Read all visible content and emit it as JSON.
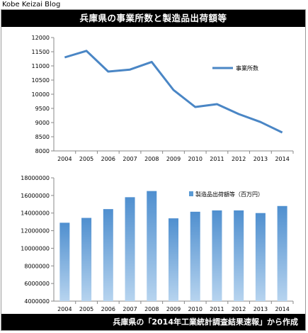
{
  "blog_label": "Kobe Keizai Blog",
  "title": "兵庫県の事業所数と製造品出荷額等",
  "source": "兵庫県の「2014年工業統計調査結果速報」から作成",
  "chart_data": [
    {
      "type": "line",
      "categories": [
        "2004",
        "2005",
        "2006",
        "2007",
        "2008",
        "2009",
        "2010",
        "2011",
        "2012",
        "2013",
        "2014"
      ],
      "series": [
        {
          "name": "事業所数",
          "values": [
            11300,
            11530,
            10800,
            10870,
            11140,
            10150,
            9550,
            9650,
            9300,
            9020,
            8650
          ],
          "color": "#4a86c5"
        }
      ],
      "ylim": [
        8000,
        12000
      ],
      "yticks": [
        8000,
        8500,
        9000,
        9500,
        10000,
        10500,
        11000,
        11500,
        12000
      ],
      "ytick_labels": [
        "8000",
        "8500",
        "9000",
        "9500",
        "10000",
        "10500",
        "11000",
        "11500",
        "12000"
      ],
      "legend": "top-right",
      "grid": false
    },
    {
      "type": "bar",
      "categories": [
        "2004",
        "2005",
        "2006",
        "2007",
        "2008",
        "2009",
        "2010",
        "2011",
        "2012",
        "2013",
        "2014"
      ],
      "series": [
        {
          "name": "製造品出荷額等（百万円）",
          "values": [
            12900000,
            13450000,
            14450000,
            15800000,
            16500000,
            13400000,
            14150000,
            14300000,
            14300000,
            14000000,
            14800000
          ],
          "color": "#5b9bd5"
        }
      ],
      "ylim": [
        4000000,
        18000000
      ],
      "yticks": [
        4000000,
        6000000,
        8000000,
        10000000,
        12000000,
        14000000,
        16000000,
        18000000
      ],
      "ytick_labels": [
        "4000000",
        "6000000",
        "8000000",
        "10000000",
        "12000000",
        "14000000",
        "16000000",
        "18000000"
      ],
      "legend": "top-right",
      "grid": false
    }
  ]
}
